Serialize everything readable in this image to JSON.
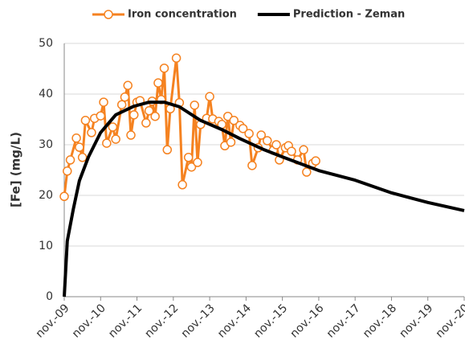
{
  "chart_data": {
    "type": "line",
    "y_label": "[Fe] (mg/L)",
    "ylim": [
      0,
      50
    ],
    "yticks": [
      0,
      10,
      20,
      30,
      40,
      50
    ],
    "grid": true,
    "xlim": [
      "2009-11",
      "2020-11"
    ],
    "xticks": [
      {
        "value": "2009-11",
        "label": "nov.-09"
      },
      {
        "value": "2010-11",
        "label": "nov.-10"
      },
      {
        "value": "2011-11",
        "label": "nov.-11"
      },
      {
        "value": "2012-11",
        "label": "nov.-12"
      },
      {
        "value": "2013-11",
        "label": "nov.-13"
      },
      {
        "value": "2014-11",
        "label": "nov.-14"
      },
      {
        "value": "2015-11",
        "label": "nov.-15"
      },
      {
        "value": "2016-11",
        "label": "nov.-16"
      },
      {
        "value": "2017-11",
        "label": "nov.-17"
      },
      {
        "value": "2018-11",
        "label": "nov.-18"
      },
      {
        "value": "2019-11",
        "label": "nov.-19"
      },
      {
        "value": "2020-11",
        "label": "nov.-20"
      }
    ],
    "legend": "top",
    "series": [
      {
        "name": "Iron concentration",
        "color": "#f58220",
        "marker": "circle",
        "x": [
          "2009-11",
          "2009-12",
          "2010-01",
          "2010-03",
          "2010-04",
          "2010-05",
          "2010-06",
          "2010-08",
          "2010-09",
          "2010-11",
          "2010-12",
          "2011-01",
          "2011-03",
          "2011-04",
          "2011-06",
          "2011-07",
          "2011-08",
          "2011-09",
          "2011-10",
          "2011-11",
          "2011-12",
          "2012-02",
          "2012-03",
          "2012-04",
          "2012-05",
          "2012-06",
          "2012-07",
          "2012-08",
          "2012-09",
          "2012-10",
          "2012-12",
          "2013-01",
          "2013-02",
          "2013-04",
          "2013-05",
          "2013-06",
          "2013-07",
          "2013-08",
          "2013-10",
          "2013-11",
          "2013-12",
          "2014-02",
          "2014-03",
          "2014-04",
          "2014-05",
          "2014-06",
          "2014-07",
          "2014-09",
          "2014-10",
          "2014-12",
          "2015-01",
          "2015-03",
          "2015-04",
          "2015-06",
          "2015-08",
          "2015-09",
          "2015-10",
          "2015-12",
          "2016-01",
          "2016-02",
          "2016-04",
          "2016-06",
          "2016-07",
          "2016-09",
          "2016-10"
        ],
        "values": [
          19.8,
          24.8,
          27,
          31.3,
          29.5,
          27.5,
          34.8,
          32.4,
          35.2,
          35.7,
          38.4,
          30.3,
          33.5,
          31.1,
          37.9,
          39.4,
          41.7,
          31.9,
          35.9,
          38.4,
          38.7,
          34.3,
          36.7,
          38.6,
          35.6,
          42.2,
          38.9,
          45.1,
          29,
          37.1,
          47.1,
          38.3,
          22.1,
          27.5,
          25.6,
          37.8,
          26.5,
          34,
          35.2,
          39.5,
          35.1,
          34.6,
          34,
          29.8,
          35.6,
          30.5,
          34.8,
          33.8,
          33.2,
          32.2,
          25.9,
          29.4,
          31.9,
          30.8,
          28.9,
          30,
          27,
          29.4,
          29.8,
          28.7,
          27,
          29,
          24.6,
          26.3,
          26.8
        ]
      },
      {
        "name": "Prediction - Zeman",
        "color": "#000000",
        "x": [
          "2009-11",
          "2009-12",
          "2010-02",
          "2010-04",
          "2010-07",
          "2010-11",
          "2011-04",
          "2011-10",
          "2012-03",
          "2012-08",
          "2013-01",
          "2013-08",
          "2014-03",
          "2014-09",
          "2015-05",
          "2015-11",
          "2016-11",
          "2017-11",
          "2018-11",
          "2019-11",
          "2020-11"
        ],
        "values": [
          0,
          11,
          17.3,
          22.9,
          27.6,
          32.4,
          35.9,
          37.6,
          38.4,
          38.4,
          37.5,
          34.8,
          33,
          31.2,
          29,
          27.6,
          24.9,
          23,
          20.5,
          18.6,
          17
        ]
      }
    ]
  }
}
